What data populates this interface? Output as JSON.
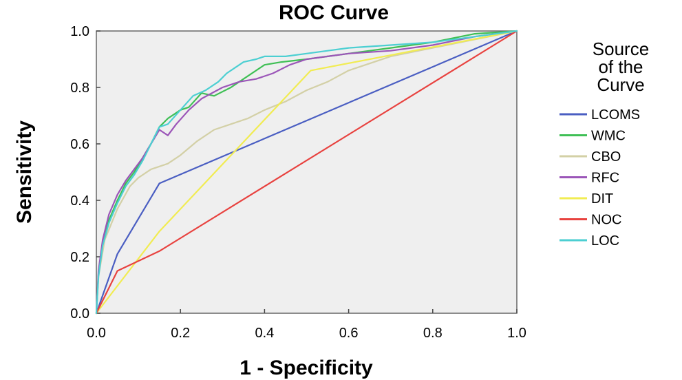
{
  "chart_data": {
    "type": "line",
    "title": "ROC Curve",
    "xlabel": "1 - Specificity",
    "ylabel": "Sensitivity",
    "xlim": [
      0,
      1
    ],
    "ylim": [
      0,
      1
    ],
    "xticks": [
      "0.0",
      "0.2",
      "0.4",
      "0.6",
      "0.8",
      "1.0"
    ],
    "yticks": [
      "0.0",
      "0.2",
      "0.4",
      "0.6",
      "0.8",
      "1.0"
    ],
    "grid": false,
    "plot_background": "#efefef",
    "legend": {
      "title_lines": [
        "Source",
        "of the",
        "Curve"
      ],
      "position": "right"
    },
    "series": [
      {
        "name": "LCOMS",
        "color": "#4a5ec2",
        "x": [
          0,
          0.05,
          0.15,
          1
        ],
        "y": [
          0,
          0.21,
          0.46,
          1
        ]
      },
      {
        "name": "WMC",
        "color": "#3fbf55",
        "x": [
          0,
          0.005,
          0.015,
          0.03,
          0.05,
          0.07,
          0.09,
          0.11,
          0.13,
          0.15,
          0.17,
          0.2,
          0.22,
          0.25,
          0.28,
          0.32,
          0.36,
          0.4,
          0.44,
          0.5,
          0.55,
          0.6,
          0.65,
          0.7,
          0.8,
          0.9,
          1
        ],
        "y": [
          0,
          0.14,
          0.25,
          0.33,
          0.4,
          0.46,
          0.5,
          0.55,
          0.6,
          0.66,
          0.69,
          0.72,
          0.73,
          0.78,
          0.77,
          0.8,
          0.84,
          0.88,
          0.89,
          0.9,
          0.91,
          0.92,
          0.93,
          0.94,
          0.96,
          0.99,
          1
        ]
      },
      {
        "name": "CBO",
        "color": "#d3d0a6",
        "x": [
          0,
          0.005,
          0.02,
          0.05,
          0.08,
          0.1,
          0.13,
          0.17,
          0.2,
          0.24,
          0.28,
          0.32,
          0.36,
          0.4,
          0.45,
          0.5,
          0.55,
          0.6,
          0.7,
          0.8,
          0.9,
          1
        ],
        "y": [
          0,
          0.13,
          0.26,
          0.37,
          0.45,
          0.48,
          0.51,
          0.53,
          0.56,
          0.61,
          0.65,
          0.67,
          0.69,
          0.72,
          0.75,
          0.79,
          0.82,
          0.86,
          0.91,
          0.94,
          0.97,
          1
        ]
      },
      {
        "name": "RFC",
        "color": "#9b55b8",
        "x": [
          0,
          0.005,
          0.015,
          0.03,
          0.05,
          0.07,
          0.09,
          0.11,
          0.13,
          0.15,
          0.17,
          0.19,
          0.22,
          0.25,
          0.3,
          0.34,
          0.38,
          0.42,
          0.46,
          0.5,
          0.55,
          0.6,
          0.7,
          0.8,
          0.9,
          1
        ],
        "y": [
          0,
          0.15,
          0.26,
          0.35,
          0.42,
          0.47,
          0.51,
          0.55,
          0.6,
          0.65,
          0.63,
          0.67,
          0.72,
          0.76,
          0.8,
          0.82,
          0.83,
          0.85,
          0.88,
          0.9,
          0.91,
          0.92,
          0.93,
          0.95,
          0.98,
          1
        ]
      },
      {
        "name": "DIT",
        "color": "#f1ec52",
        "x": [
          0,
          0.15,
          0.51,
          1
        ],
        "y": [
          0,
          0.29,
          0.86,
          1
        ]
      },
      {
        "name": "NOC",
        "color": "#e8423f",
        "x": [
          0,
          0.05,
          0.15,
          1
        ],
        "y": [
          0,
          0.15,
          0.22,
          1
        ]
      },
      {
        "name": "LOC",
        "color": "#4ccfd2",
        "x": [
          0,
          0.005,
          0.015,
          0.03,
          0.05,
          0.07,
          0.09,
          0.11,
          0.13,
          0.15,
          0.17,
          0.2,
          0.23,
          0.26,
          0.29,
          0.31,
          0.33,
          0.35,
          0.38,
          0.4,
          0.45,
          0.5,
          0.55,
          0.6,
          0.7,
          0.8,
          0.9,
          1
        ],
        "y": [
          0,
          0.13,
          0.24,
          0.32,
          0.39,
          0.45,
          0.49,
          0.54,
          0.6,
          0.66,
          0.67,
          0.72,
          0.77,
          0.79,
          0.82,
          0.85,
          0.87,
          0.89,
          0.9,
          0.91,
          0.91,
          0.92,
          0.93,
          0.94,
          0.95,
          0.96,
          0.98,
          1
        ]
      }
    ]
  }
}
